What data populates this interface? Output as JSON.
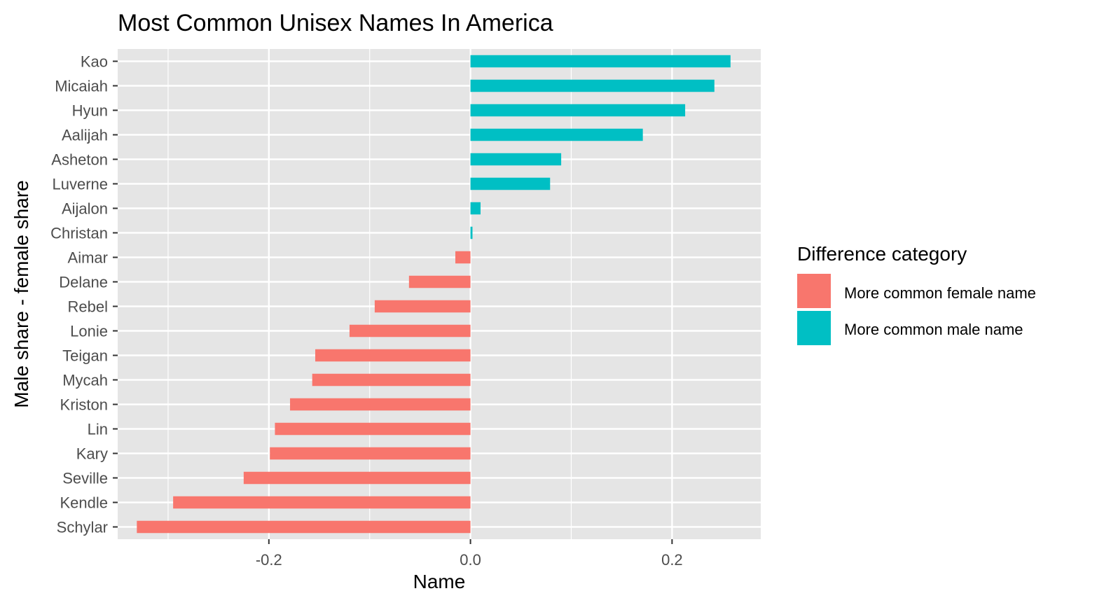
{
  "chart_data": {
    "type": "bar",
    "orientation": "horizontal",
    "title": "Most Common Unisex Names In America",
    "xlabel": "Name",
    "ylabel": "Male share - female share",
    "xlim": [
      -0.35,
      0.288
    ],
    "x_ticks": [
      -0.2,
      0.0,
      0.2
    ],
    "x_tick_labels": [
      "-0.2",
      "0.0",
      "0.2"
    ],
    "grid": true,
    "legend": {
      "title": "Difference category",
      "position": "right",
      "entries": [
        {
          "label": "More common female name",
          "color": "#F8766D"
        },
        {
          "label": "More common male name",
          "color": "#00BFC4"
        }
      ]
    },
    "categories": [
      "Kao",
      "Micaiah",
      "Hyun",
      "Aalijah",
      "Asheton",
      "Luverne",
      "Aijalon",
      "Christan",
      "Aimar",
      "Delane",
      "Rebel",
      "Lonie",
      "Teigan",
      "Mycah",
      "Kriston",
      "Lin",
      "Kary",
      "Seville",
      "Kendle",
      "Schylar"
    ],
    "values": [
      0.258,
      0.242,
      0.213,
      0.171,
      0.09,
      0.079,
      0.01,
      0.002,
      -0.015,
      -0.061,
      -0.095,
      -0.12,
      -0.154,
      -0.157,
      -0.179,
      -0.194,
      -0.199,
      -0.225,
      -0.295,
      -0.331
    ],
    "colors": {
      "female": "#F8766D",
      "male": "#00BFC4",
      "panel_bg": "#E5E5E5",
      "grid": "#FFFFFF"
    }
  }
}
